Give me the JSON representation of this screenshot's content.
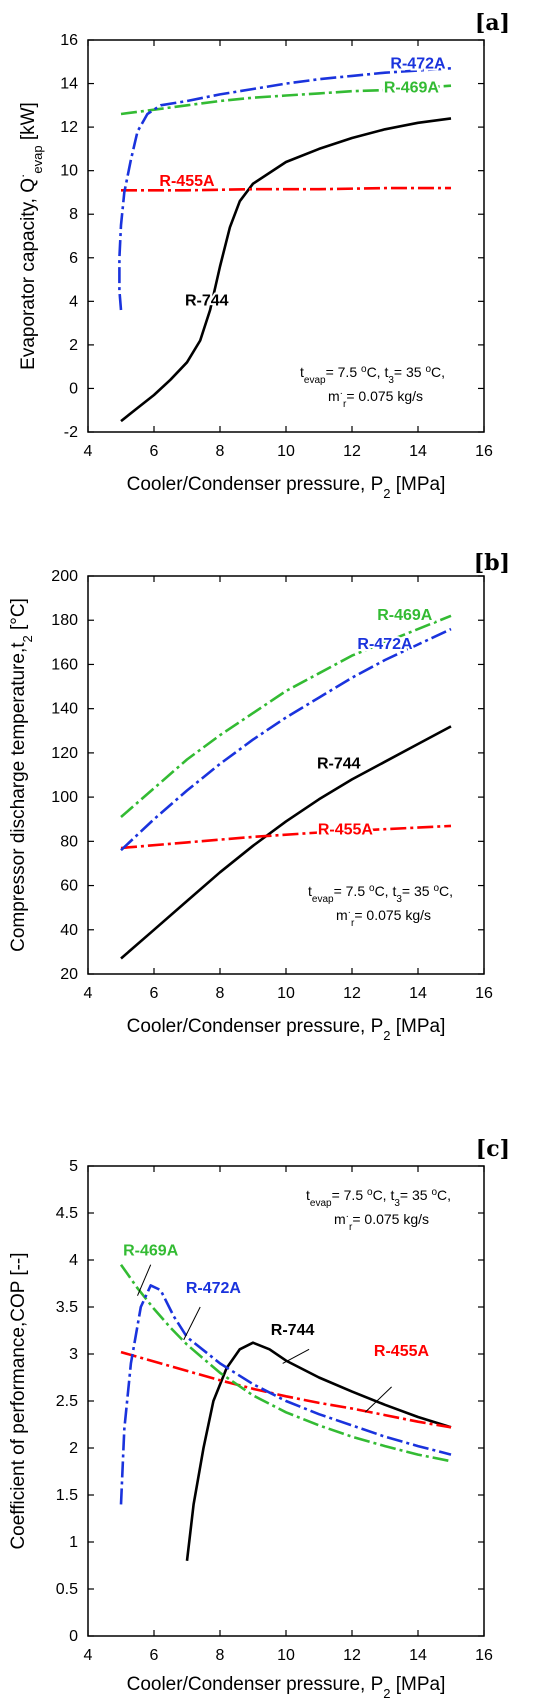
{
  "chart_data": [
    {
      "panel_tag": "[a]",
      "type": "line",
      "xlabel": "Cooler/Condenser pressure, P",
      "xlabel_sub": "2",
      "xlabel_unit": " [MPa]",
      "ylabel_main": "Evaporator capacity, Q",
      "ylabel_sup": "·",
      "ylabel_sub": "evap",
      "ylabel_unit": " [kW]",
      "xlim": [
        4,
        16
      ],
      "ylim": [
        -2,
        16
      ],
      "xticks": [
        "4",
        "6",
        "8",
        "10",
        "12",
        "14",
        "16"
      ],
      "yticks": [
        "-2",
        "0",
        "2",
        "4",
        "6",
        "8",
        "10",
        "12",
        "14",
        "16"
      ],
      "annotation": {
        "line1": [
          "t",
          "evap",
          "= 7.5 ",
          "o",
          "C, t",
          "3",
          "= 35 ",
          "o",
          "C,"
        ],
        "line2": [
          "m",
          "·",
          "r",
          "= 0.075 kg/s"
        ]
      },
      "series": [
        {
          "name": "R-744",
          "color": "#000000",
          "dash": "solid",
          "points": [
            [
              5,
              -1.5
            ],
            [
              5.5,
              -0.9
            ],
            [
              6,
              -0.3
            ],
            [
              6.5,
              0.4
            ],
            [
              7,
              1.2
            ],
            [
              7.4,
              2.2
            ],
            [
              7.7,
              3.6
            ],
            [
              8,
              5.6
            ],
            [
              8.3,
              7.4
            ],
            [
              8.6,
              8.6
            ],
            [
              9,
              9.4
            ],
            [
              10,
              10.4
            ],
            [
              11,
              11.0
            ],
            [
              12,
              11.5
            ],
            [
              13,
              11.9
            ],
            [
              14,
              12.2
            ],
            [
              15,
              12.4
            ]
          ],
          "label_pos": [
            7.6,
            3.8
          ]
        },
        {
          "name": "R-455A",
          "color": "#ff0000",
          "dash": "dashdot",
          "points": [
            [
              5,
              9.1
            ],
            [
              7,
              9.1
            ],
            [
              9,
              9.15
            ],
            [
              11,
              9.15
            ],
            [
              13,
              9.2
            ],
            [
              15,
              9.2
            ]
          ],
          "label_pos": [
            7.0,
            9.3
          ]
        },
        {
          "name": "R-469A",
          "color": "#33bb33",
          "dash": "dashdot",
          "points": [
            [
              5,
              12.6
            ],
            [
              6,
              12.8
            ],
            [
              7,
              13.0
            ],
            [
              8,
              13.2
            ],
            [
              9,
              13.35
            ],
            [
              10,
              13.45
            ],
            [
              11,
              13.55
            ],
            [
              12,
              13.65
            ],
            [
              13,
              13.7
            ],
            [
              14,
              13.8
            ],
            [
              15,
              13.9
            ]
          ],
          "label_pos": [
            13.8,
            13.6
          ]
        },
        {
          "name": "R-472A",
          "color": "#1a33dd",
          "dash": "dashdot",
          "points": [
            [
              5,
              3.6
            ],
            [
              4.95,
              4.5
            ],
            [
              4.95,
              6
            ],
            [
              5,
              7.5
            ],
            [
              5.1,
              9
            ],
            [
              5.3,
              10.5
            ],
            [
              5.5,
              11.8
            ],
            [
              5.8,
              12.6
            ],
            [
              6.2,
              13.0
            ],
            [
              7,
              13.2
            ],
            [
              8,
              13.5
            ],
            [
              9,
              13.75
            ],
            [
              10,
              14.0
            ],
            [
              11,
              14.2
            ],
            [
              12,
              14.35
            ],
            [
              13,
              14.5
            ],
            [
              14,
              14.6
            ],
            [
              15,
              14.7
            ]
          ],
          "label_pos": [
            14.0,
            14.7
          ]
        }
      ]
    },
    {
      "panel_tag": "[b]",
      "type": "line",
      "xlabel": "Cooler/Condenser pressure, P",
      "xlabel_sub": "2",
      "xlabel_unit": " [MPa]",
      "ylabel_main": "Compressor discharge temperature,t",
      "ylabel_sup": "",
      "ylabel_sub": "2",
      "ylabel_unit": " [°C]",
      "xlim": [
        4,
        16
      ],
      "ylim": [
        20,
        200
      ],
      "xticks": [
        "4",
        "6",
        "8",
        "10",
        "12",
        "14",
        "16"
      ],
      "yticks": [
        "20",
        "40",
        "60",
        "80",
        "100",
        "120",
        "140",
        "160",
        "180",
        "200"
      ],
      "annotation": {
        "line1": [
          "t",
          "evap",
          "= 7.5 ",
          "o",
          "C, t",
          "3",
          "= 35 ",
          "o",
          "C,"
        ],
        "line2": [
          "m",
          "·",
          "r",
          "= 0.075 kg/s"
        ]
      },
      "series": [
        {
          "name": "R-744",
          "color": "#000000",
          "dash": "solid",
          "points": [
            [
              5,
              27
            ],
            [
              6,
              40
            ],
            [
              7,
              53
            ],
            [
              8,
              66
            ],
            [
              9,
              78
            ],
            [
              10,
              89
            ],
            [
              11,
              99
            ],
            [
              12,
              108
            ],
            [
              13,
              116
            ],
            [
              14,
              124
            ],
            [
              15,
              132
            ]
          ],
          "label_pos": [
            11.6,
            113
          ]
        },
        {
          "name": "R-455A",
          "color": "#ff0000",
          "dash": "dashdot",
          "points": [
            [
              5,
              77
            ],
            [
              7,
              79.5
            ],
            [
              9,
              82
            ],
            [
              11,
              84
            ],
            [
              13,
              85.5
            ],
            [
              15,
              87
            ]
          ],
          "label_pos": [
            11.8,
            83
          ]
        },
        {
          "name": "R-469A",
          "color": "#33bb33",
          "dash": "dashdot",
          "points": [
            [
              5,
              91
            ],
            [
              6,
              104
            ],
            [
              7,
              117
            ],
            [
              8,
              128
            ],
            [
              9,
              138
            ],
            [
              10,
              148
            ],
            [
              11,
              156
            ],
            [
              12,
              164
            ],
            [
              13,
              170
            ],
            [
              14,
              176
            ],
            [
              15,
              182
            ]
          ],
          "label_pos": [
            13.6,
            180
          ]
        },
        {
          "name": "R-472A",
          "color": "#1a33dd",
          "dash": "dashdot",
          "points": [
            [
              5,
              76
            ],
            [
              6,
              90
            ],
            [
              7,
              103
            ],
            [
              8,
              115
            ],
            [
              9,
              126
            ],
            [
              10,
              136
            ],
            [
              11,
              145
            ],
            [
              12,
              154
            ],
            [
              13,
              162
            ],
            [
              14,
              169
            ],
            [
              15,
              176
            ]
          ],
          "label_pos": [
            13.0,
            167
          ]
        }
      ]
    },
    {
      "panel_tag": "[c]",
      "type": "line",
      "xlabel": "Cooler/Condenser pressure, P",
      "xlabel_sub": "2",
      "xlabel_unit": " [MPa]",
      "ylabel_main": "Coefficient of performance,COP",
      "ylabel_sup": "",
      "ylabel_sub": "",
      "ylabel_unit": " [--]",
      "xlim": [
        4,
        16
      ],
      "ylim": [
        0,
        5
      ],
      "xticks": [
        "4",
        "6",
        "8",
        "10",
        "12",
        "14",
        "16"
      ],
      "yticks": [
        "0",
        "0.5",
        "1",
        "1.5",
        "2",
        "2.5",
        "3",
        "3.5",
        "4",
        "4.5",
        "5"
      ],
      "annotation": {
        "line1": [
          "t",
          "evap",
          "= 7.5 ",
          "o",
          "C, t",
          "3",
          "= 35 ",
          "o",
          "C,"
        ],
        "line2": [
          "m",
          "·",
          "r",
          "= 0.075 kg/s"
        ]
      },
      "series": [
        {
          "name": "R-744",
          "color": "#000000",
          "dash": "solid",
          "points": [
            [
              7.0,
              0.8
            ],
            [
              7.2,
              1.4
            ],
            [
              7.5,
              2.0
            ],
            [
              7.8,
              2.5
            ],
            [
              8.2,
              2.85
            ],
            [
              8.6,
              3.05
            ],
            [
              9,
              3.12
            ],
            [
              9.5,
              3.05
            ],
            [
              10,
              2.93
            ],
            [
              11,
              2.75
            ],
            [
              12,
              2.6
            ],
            [
              13,
              2.46
            ],
            [
              14,
              2.33
            ],
            [
              15,
              2.22
            ]
          ],
          "label_pos": [
            10.2,
            3.2
          ],
          "leader": [
            [
              10.7,
              3.05
            ],
            [
              9.9,
              2.9
            ]
          ]
        },
        {
          "name": "R-455A",
          "color": "#ff0000",
          "dash": "dashdot",
          "points": [
            [
              5,
              3.02
            ],
            [
              6,
              2.92
            ],
            [
              7,
              2.82
            ],
            [
              8,
              2.72
            ],
            [
              9,
              2.63
            ],
            [
              10,
              2.55
            ],
            [
              11,
              2.48
            ],
            [
              12,
              2.42
            ],
            [
              13,
              2.35
            ],
            [
              14,
              2.28
            ],
            [
              15,
              2.22
            ]
          ],
          "label_pos": [
            13.5,
            2.98
          ],
          "leader": [
            [
              13.2,
              2.65
            ],
            [
              12.4,
              2.38
            ]
          ]
        },
        {
          "name": "R-469A",
          "color": "#33bb33",
          "dash": "dashdot",
          "points": [
            [
              5,
              3.95
            ],
            [
              5.5,
              3.7
            ],
            [
              6,
              3.48
            ],
            [
              6.5,
              3.28
            ],
            [
              7,
              3.1
            ],
            [
              8,
              2.8
            ],
            [
              9,
              2.56
            ],
            [
              10,
              2.38
            ],
            [
              11,
              2.24
            ],
            [
              12,
              2.12
            ],
            [
              13,
              2.02
            ],
            [
              14,
              1.93
            ],
            [
              15,
              1.86
            ]
          ],
          "label_pos": [
            5.9,
            4.05
          ],
          "leader": [
            [
              5.9,
              3.95
            ],
            [
              5.5,
              3.62
            ]
          ]
        },
        {
          "name": "R-472A",
          "color": "#1a33dd",
          "dash": "dashdot",
          "points": [
            [
              5.0,
              1.4
            ],
            [
              5.1,
              2.2
            ],
            [
              5.3,
              2.9
            ],
            [
              5.6,
              3.5
            ],
            [
              5.9,
              3.73
            ],
            [
              6.2,
              3.68
            ],
            [
              6.6,
              3.4
            ],
            [
              7,
              3.18
            ],
            [
              8,
              2.9
            ],
            [
              9,
              2.68
            ],
            [
              10,
              2.5
            ],
            [
              11,
              2.36
            ],
            [
              12,
              2.24
            ],
            [
              13,
              2.12
            ],
            [
              14,
              2.02
            ],
            [
              15,
              1.93
            ]
          ],
          "label_pos": [
            7.8,
            3.65
          ],
          "leader": [
            [
              7.4,
              3.5
            ],
            [
              6.9,
              3.15
            ]
          ]
        }
      ]
    }
  ]
}
